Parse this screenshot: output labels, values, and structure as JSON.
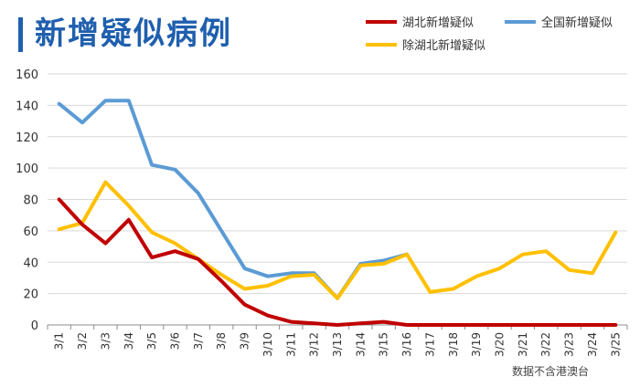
{
  "header": {
    "title": "新增疑似病例"
  },
  "footnote": "数据不含港澳台",
  "colors": {
    "title": "#1f5fae",
    "hubei": "#c00000",
    "national": "#5b9bd5",
    "ex_hubei": "#ffc000"
  },
  "chart_data": {
    "type": "line",
    "title": "新增疑似病例",
    "xlabel": "",
    "ylabel": "",
    "ylim": [
      0,
      160
    ],
    "yticks": [
      0,
      20,
      40,
      60,
      80,
      100,
      120,
      140,
      160
    ],
    "grid": "horizontal",
    "legend_position": "top-right",
    "categories": [
      "3/1",
      "3/2",
      "3/3",
      "3/4",
      "3/5",
      "3/6",
      "3/7",
      "3/8",
      "3/9",
      "3/10",
      "3/11",
      "3/12",
      "3/13",
      "3/14",
      "3/15",
      "3/16",
      "3/17",
      "3/18",
      "3/19",
      "3/20",
      "3/21",
      "3/22",
      "3/23",
      "3/24",
      "3/25"
    ],
    "series": [
      {
        "name": "湖北新增疑似",
        "color": "#c00000",
        "values": [
          80,
          64,
          52,
          67,
          43,
          47,
          42,
          28,
          13,
          6,
          2,
          1,
          0,
          1,
          2,
          0,
          0,
          0,
          0,
          0,
          0,
          0,
          0,
          0,
          0
        ]
      },
      {
        "name": "全国新增疑似",
        "color": "#5b9bd5",
        "values": [
          141,
          129,
          143,
          143,
          102,
          99,
          84,
          60,
          36,
          31,
          33,
          33,
          17,
          39,
          41,
          45,
          null,
          null,
          null,
          null,
          null,
          null,
          null,
          null,
          null
        ]
      },
      {
        "name": "除湖北新增疑似",
        "color": "#ffc000",
        "values": [
          61,
          65,
          91,
          76,
          59,
          52,
          42,
          32,
          23,
          25,
          31,
          32,
          17,
          38,
          39,
          45,
          21,
          23,
          31,
          36,
          45,
          47,
          35,
          33,
          59
        ]
      }
    ]
  }
}
